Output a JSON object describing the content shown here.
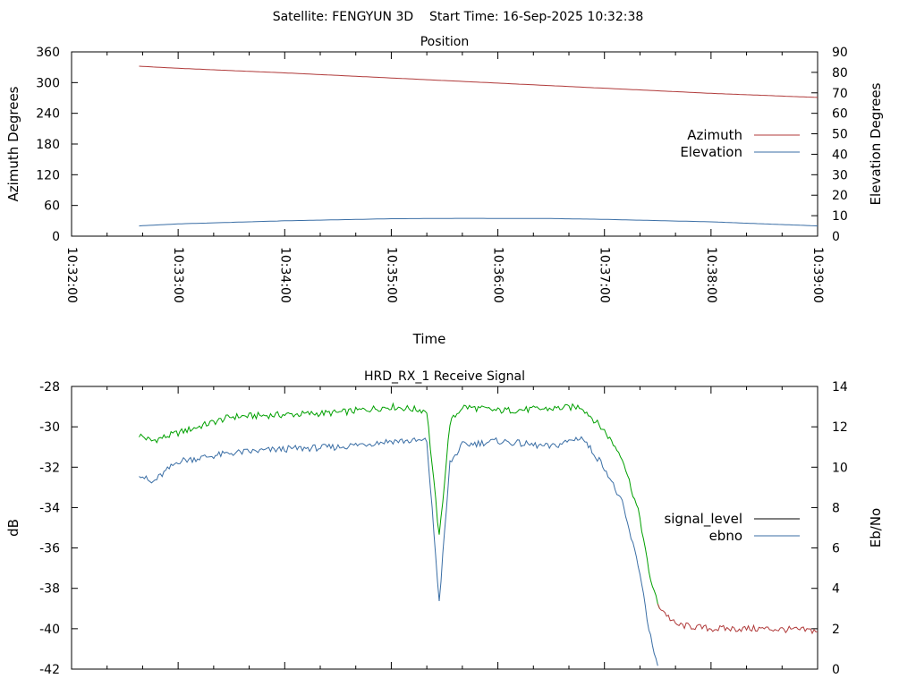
{
  "header": {
    "text": "Satellite: FENGYUN 3D    Start Time: 16-Sep-2025 10:32:38"
  },
  "chart_data": [
    {
      "type": "line",
      "title": "Position",
      "xlabel": "Time",
      "ylabel": "Azimuth Degrees",
      "y2label": "Elevation Degrees",
      "xlim": [
        "10:32:00",
        "10:39:00"
      ],
      "xticks": [
        "10:32:00",
        "10:33:00",
        "10:34:00",
        "10:35:00",
        "10:36:00",
        "10:37:00",
        "10:38:00",
        "10:39:00"
      ],
      "ylim": [
        0,
        360
      ],
      "yticks": [
        0,
        60,
        120,
        180,
        240,
        300,
        360
      ],
      "y2lim": [
        0,
        90
      ],
      "y2ticks": [
        0,
        10,
        20,
        30,
        40,
        50,
        60,
        70,
        80,
        90
      ],
      "legend_position": "right",
      "series": [
        {
          "name": "Azimuth",
          "axis": "y",
          "color": "#b03a3a",
          "x": [
            "10:32:38",
            "10:33:00",
            "10:34:00",
            "10:35:00",
            "10:36:00",
            "10:37:00",
            "10:38:00",
            "10:39:00"
          ],
          "values": [
            332,
            328,
            319,
            309,
            299,
            289,
            279,
            271
          ]
        },
        {
          "name": "Elevation",
          "axis": "y2",
          "color": "#3a6ea5",
          "x": [
            "10:32:38",
            "10:33:00",
            "10:34:00",
            "10:35:00",
            "10:35:40",
            "10:36:30",
            "10:37:00",
            "10:38:00",
            "10:39:00"
          ],
          "values": [
            5,
            6,
            7.5,
            8.5,
            8.7,
            8.6,
            8.2,
            7,
            5
          ]
        }
      ]
    },
    {
      "type": "line",
      "title": "HRD_RX_1 Receive Signal",
      "xlabel": "",
      "ylabel": "dB",
      "y2label": "Eb/No",
      "xlim": [
        "10:32:00",
        "10:39:00"
      ],
      "ylim": [
        -42,
        -28
      ],
      "yticks": [
        -42,
        -40,
        -38,
        -36,
        -34,
        -32,
        -30,
        -28
      ],
      "y2lim": [
        0,
        14
      ],
      "y2ticks": [
        0,
        2,
        4,
        6,
        8,
        10,
        12,
        14
      ],
      "legend_position": "right",
      "series": [
        {
          "name": "signal_level",
          "axis": "y",
          "color": "#000000",
          "segment_colors": {
            "green": "#00a000",
            "red": "#b03a3a"
          },
          "x": [
            "10:32:38",
            "10:32:45",
            "10:33:00",
            "10:33:30",
            "10:34:00",
            "10:34:30",
            "10:35:00",
            "10:35:20",
            "10:35:27",
            "10:35:33",
            "10:35:40",
            "10:36:00",
            "10:36:30",
            "10:36:47",
            "10:37:00",
            "10:37:10",
            "10:37:20",
            "10:37:25",
            "10:37:30",
            "10:37:40",
            "10:38:00",
            "10:38:30",
            "10:39:00"
          ],
          "values": [
            -30.4,
            -30.7,
            -30.3,
            -29.5,
            -29.4,
            -29.3,
            -29.0,
            -29.2,
            -35.5,
            -29.8,
            -29.0,
            -29.2,
            -29.1,
            -29.0,
            -30.2,
            -31.5,
            -34.5,
            -37.2,
            -38.8,
            -39.8,
            -40.0,
            -40.0,
            -40.1
          ]
        },
        {
          "name": "ebno",
          "axis": "y2",
          "color": "#3a6ea5",
          "x": [
            "10:32:38",
            "10:32:45",
            "10:33:00",
            "10:33:30",
            "10:34:00",
            "10:34:30",
            "10:35:00",
            "10:35:20",
            "10:35:27",
            "10:35:33",
            "10:35:40",
            "10:36:00",
            "10:36:30",
            "10:36:47",
            "10:37:00",
            "10:37:10",
            "10:37:20",
            "10:37:25",
            "10:37:30"
          ],
          "values": [
            9.7,
            9.2,
            10.3,
            10.7,
            10.9,
            11.0,
            11.3,
            11.3,
            3.3,
            10.2,
            11.1,
            11.3,
            11.0,
            11.5,
            10.0,
            8.2,
            4.8,
            2.0,
            0
          ]
        }
      ]
    }
  ]
}
